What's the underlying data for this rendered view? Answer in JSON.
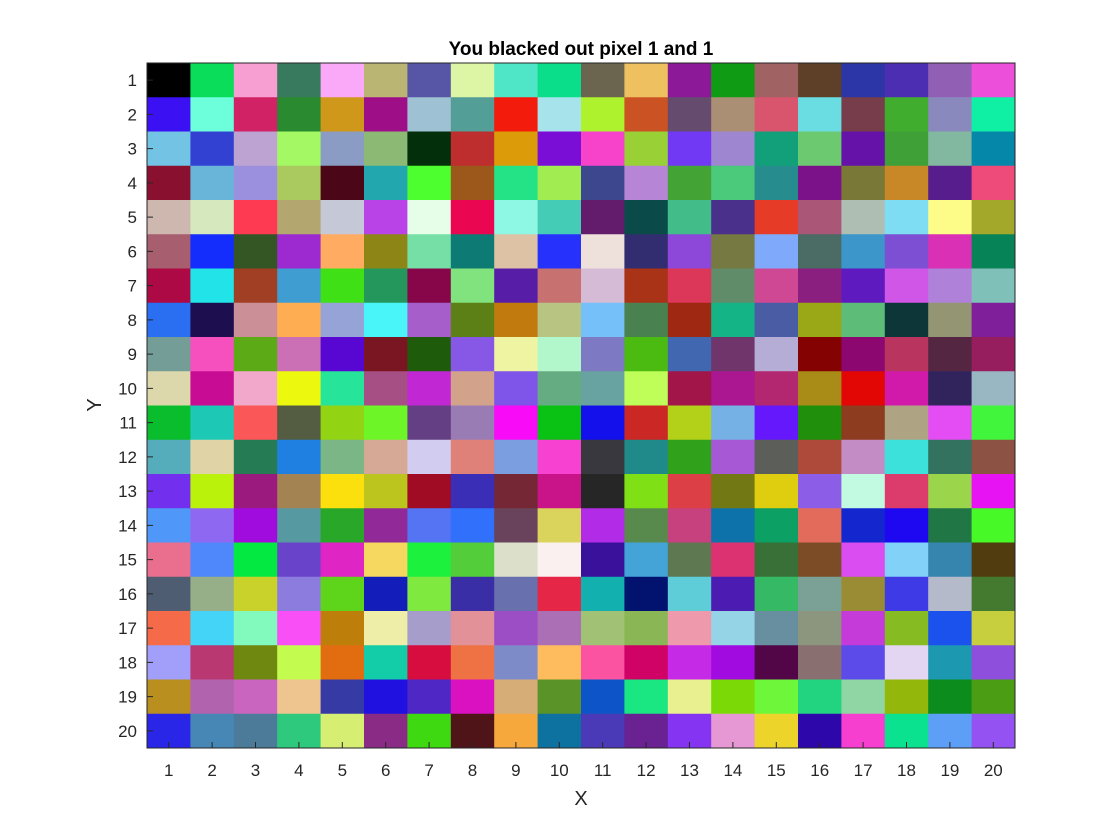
{
  "chart_data": {
    "type": "heatmap",
    "title": "You blacked out pixel 1 and 1",
    "xlabel": "X",
    "ylabel": "Y",
    "x_ticks": [
      "1",
      "2",
      "3",
      "4",
      "5",
      "6",
      "7",
      "8",
      "9",
      "10",
      "11",
      "12",
      "13",
      "14",
      "15",
      "16",
      "17",
      "18",
      "19",
      "20"
    ],
    "y_ticks": [
      "1",
      "2",
      "3",
      "4",
      "5",
      "6",
      "7",
      "8",
      "9",
      "10",
      "11",
      "12",
      "13",
      "14",
      "15",
      "16",
      "17",
      "18",
      "19",
      "20"
    ],
    "xlim": [
      0.5,
      20.5
    ],
    "ylim": [
      0.5,
      20.5
    ],
    "y_direction": "reverse",
    "grid": false,
    "cells": [
      [
        "#000000",
        "#0ADD5A",
        "#F79FD3",
        "#387A5E",
        "#FAA8F8",
        "#BAB573",
        "#5655A6",
        "#DCF6A6",
        "#4FE6C8",
        "#0ADE8A",
        "#6B6550",
        "#EFC060",
        "#8B1998",
        "#0F9C14",
        "#A16263",
        "#5E4029",
        "#2D36A6",
        "#4C2EB3",
        "#9160B5",
        "#EC4FD9"
      ],
      [
        "#3B10F3",
        "#6DFEDC",
        "#D02265",
        "#2A8A2F",
        "#D0981A",
        "#9E0F87",
        "#9EC1D3",
        "#539E96",
        "#F31C0C",
        "#A6E3EA",
        "#AEF22D",
        "#CB5222",
        "#654C6E",
        "#AB8F75",
        "#D9556D",
        "#6ADDE3",
        "#783D4A",
        "#40AD2F",
        "#8989BE",
        "#10F0A5"
      ],
      [
        "#73C4E4",
        "#3341D3",
        "#BDA3D1",
        "#A3F863",
        "#8A9CC3",
        "#8CBA75",
        "#03300A",
        "#BF2E2E",
        "#DC9C09",
        "#7A0ED7",
        "#F743CA",
        "#99D036",
        "#7139F3",
        "#9E86D1",
        "#11A07A",
        "#6CC970",
        "#6512A8",
        "#3FA038",
        "#82B8A0",
        "#0487A8"
      ],
      [
        "#89102F",
        "#69B5D9",
        "#9A90DD",
        "#AACA60",
        "#4B0617",
        "#22A7AE",
        "#4DFF2F",
        "#9C571B",
        "#24E386",
        "#A1EC51",
        "#3D478E",
        "#B785D6",
        "#43A334",
        "#4ACA7A",
        "#268C8E",
        "#7B1289",
        "#7A7837",
        "#C98828",
        "#581D8C",
        "#EF4B7A"
      ],
      [
        "#CDB7AE",
        "#D6E9BE",
        "#FE3A52",
        "#B3A66F",
        "#C5C8D7",
        "#BA43E8",
        "#E6FEE8",
        "#EA0651",
        "#8FF8E4",
        "#44CCB6",
        "#631C6C",
        "#0A4B4A",
        "#42BC88",
        "#4A308A",
        "#E63C27",
        "#AA5677",
        "#AEBEB2",
        "#7FDDF3",
        "#FEFC88",
        "#A3A82A"
      ],
      [
        "#A75E6E",
        "#142DFC",
        "#345624",
        "#9C2AD0",
        "#FFAC62",
        "#8D8616",
        "#75DFA6",
        "#0E7A74",
        "#DDC2A5",
        "#2631FC",
        "#EEE0DA",
        "#312D70",
        "#8D47D9",
        "#767942",
        "#7FAAFB",
        "#4B6B65",
        "#3C96CA",
        "#7D4FD2",
        "#D930B5",
        "#078457"
      ],
      [
        "#AD0944",
        "#21E3E8",
        "#A03F23",
        "#3F9DD1",
        "#40E016",
        "#24985C",
        "#87064A",
        "#80E37D",
        "#571DA7",
        "#C87171",
        "#D6BBD6",
        "#A93317",
        "#DC3659",
        "#608C6A",
        "#CF4893",
        "#8A1F7F",
        "#5E1ABF",
        "#D056E8",
        "#AF81D9",
        "#7FC0B9"
      ],
      [
        "#2A6EF1",
        "#1D0E50",
        "#CB8F98",
        "#FFAD52",
        "#95A3D7",
        "#4AF5FA",
        "#A55ECA",
        "#5D8016",
        "#C17A0E",
        "#B8C481",
        "#75C0F8",
        "#4A8151",
        "#9F2813",
        "#15B487",
        "#4A5CA3",
        "#9AA716",
        "#5DBC77",
        "#0D3639",
        "#949573",
        "#7F1F9A"
      ],
      [
        "#739D96",
        "#F550BD",
        "#5DAA17",
        "#CB70B5",
        "#5806D2",
        "#7A1622",
        "#1E5C0C",
        "#8758E6",
        "#EEF4A1",
        "#B2F6CB",
        "#7D79C2",
        "#4BBB11",
        "#4167B0",
        "#70356A",
        "#B6ADD6",
        "#840201",
        "#8D0770",
        "#B9345E",
        "#542641",
        "#971E5E"
      ],
      [
        "#DDD8AB",
        "#C90C94",
        "#F2A8CA",
        "#EDF80F",
        "#26E49A",
        "#A64F84",
        "#C127D3",
        "#D2A28B",
        "#7F55E9",
        "#66AC83",
        "#68A3A2",
        "#BFFD58",
        "#A11548",
        "#AB1691",
        "#B2276F",
        "#A88C17",
        "#E20605",
        "#D21AAA",
        "#31235C",
        "#99B7C2"
      ],
      [
        "#0ABD2C",
        "#1DC8B5",
        "#FA5758",
        "#545C41",
        "#92D414",
        "#6DF527",
        "#643F83",
        "#9A7CB5",
        "#F80CF7",
        "#09C213",
        "#1410EB",
        "#CB2724",
        "#B4D11A",
        "#75B1E5",
        "#6518FB",
        "#1F8F0C",
        "#8D3C1F",
        "#AEA483",
        "#E44DF3",
        "#41F53D"
      ],
      [
        "#55ACBA",
        "#E0D4A6",
        "#247B54",
        "#1F80E1",
        "#7BB686",
        "#D6A997",
        "#D2CCF1",
        "#E08179",
        "#7B9EE1",
        "#F641D1",
        "#39383E",
        "#208989",
        "#2FA11A",
        "#A759D5",
        "#5C5E5A",
        "#AE4A39",
        "#C48CC5",
        "#3DE1DC",
        "#33725E",
        "#8C5244"
      ],
      [
        "#7230EE",
        "#BBF20C",
        "#9A1B7D",
        "#A48353",
        "#FCE00D",
        "#BCC51E",
        "#9F0C24",
        "#3A2EB6",
        "#752735",
        "#C91388",
        "#262626",
        "#80E016",
        "#DC4046",
        "#727814",
        "#DFCD0F",
        "#8C5EE8",
        "#C2FAE1",
        "#DB3C6B",
        "#9BD54C",
        "#E713F3"
      ],
      [
        "#4F97F9",
        "#8F68F2",
        "#A00CDE",
        "#5699A0",
        "#29A728",
        "#922998",
        "#5474F3",
        "#3070FB",
        "#69435B",
        "#DAD35C",
        "#B22BE6",
        "#588A4D",
        "#C7417E",
        "#0D72AA",
        "#0CA064",
        "#E26B5C",
        "#1426CE",
        "#1E08F2",
        "#217646",
        "#47F927"
      ],
      [
        "#EA6E8E",
        "#4F88FB",
        "#04E941",
        "#6944CB",
        "#DF25C3",
        "#F6D860",
        "#1CF13D",
        "#54CD3A",
        "#DCE0CB",
        "#FAF0EF",
        "#3A119A",
        "#44A4D8",
        "#5E7852",
        "#DD3271",
        "#387037",
        "#7C4C27",
        "#D94DF1",
        "#82D1F8",
        "#3585AE",
        "#513C0F"
      ],
      [
        "#4F5D72",
        "#96AF88",
        "#C8D22A",
        "#8C7CDE",
        "#5ED51B",
        "#131DB9",
        "#80E93F",
        "#392EA6",
        "#6871AE",
        "#E62646",
        "#12B1B0",
        "#02136F",
        "#5ECDD8",
        "#4C1BB1",
        "#36B965",
        "#7BA095",
        "#9A8C34",
        "#3E3AE6",
        "#B5BACA",
        "#447A30"
      ],
      [
        "#F56B49",
        "#44D4F8",
        "#82FABD",
        "#F94FF6",
        "#BE7E0A",
        "#EEEEA8",
        "#A69DCA",
        "#E29198",
        "#9C4EC4",
        "#AA6FB4",
        "#A1C174",
        "#8BB656",
        "#EF99AC",
        "#95D4E6",
        "#678F9F",
        "#8C957D",
        "#C53BDA",
        "#87BB22",
        "#1B52EE",
        "#C8CF3F"
      ],
      [
        "#A19FF9",
        "#BA3872",
        "#6E8810",
        "#C3FB4E",
        "#E26C10",
        "#13CCA8",
        "#D70D3F",
        "#EE7244",
        "#7E8BC9",
        "#FEBC5E",
        "#FB53A2",
        "#D00265",
        "#C52BE6",
        "#A10BE0",
        "#520648",
        "#896F70",
        "#5C4AE9",
        "#E3D6F2",
        "#1D98B1",
        "#8E4FDD"
      ],
      [
        "#B98F20",
        "#B263AE",
        "#C965BE",
        "#EFC58F",
        "#363AA5",
        "#2011E0",
        "#4F27C4",
        "#D911C0",
        "#D6AD76",
        "#5A9327",
        "#0C54C8",
        "#1AE682",
        "#E8F090",
        "#7BDA06",
        "#6DF63A",
        "#22D37F",
        "#90D5A4",
        "#93B80B",
        "#0B8C1D",
        "#4B9E14"
      ],
      [
        "#2A26E8",
        "#4687B5",
        "#4C7B9A",
        "#2FC97D",
        "#D6EF73",
        "#8A2C85",
        "#3ED911",
        "#4F1418",
        "#F6A83D",
        "#0E72A1",
        "#4B3AB7",
        "#6A2192",
        "#8535F1",
        "#E598D3",
        "#EDD42B",
        "#2E07AA",
        "#F63FCE",
        "#0AE28F",
        "#5D9FF7",
        "#9552F2"
      ]
    ]
  }
}
